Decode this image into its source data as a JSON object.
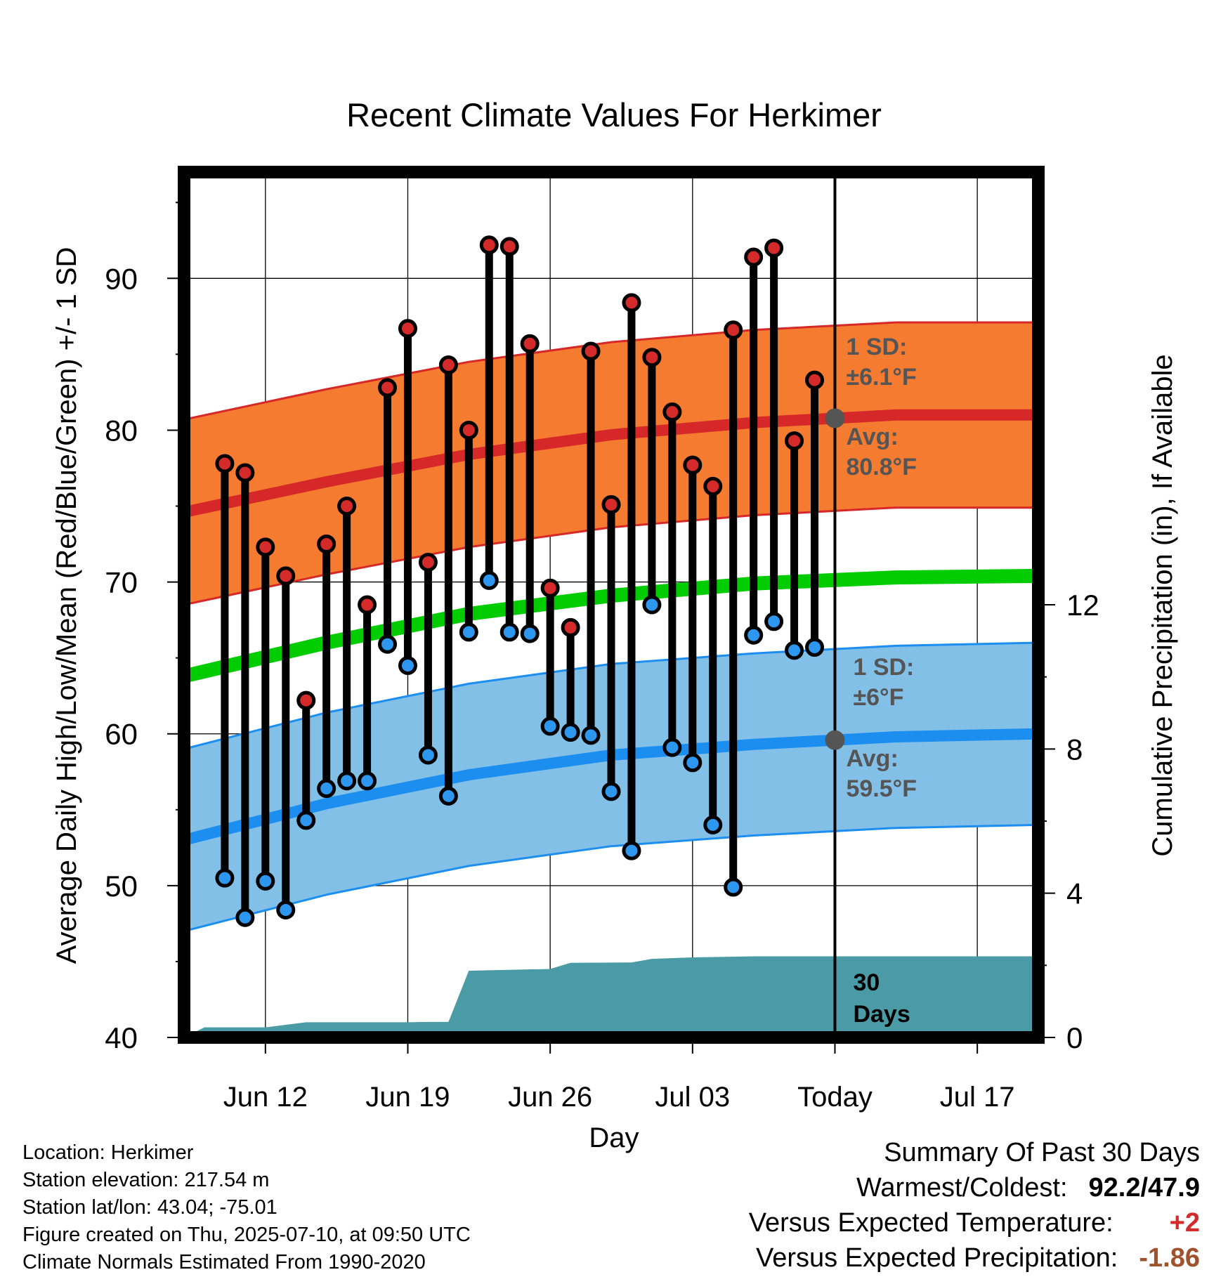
{
  "title": "Recent Climate Values For Herkimer",
  "chart_data": {
    "type": "line",
    "title": "Recent Climate Values For Herkimer",
    "xlabel": "Day",
    "ylabel": "Average Daily High/Low/Mean (Red/Blue/Green) +/- 1 SD",
    "ylabel_right": "Cumulative Precipitation (in), If Available",
    "ylim": [
      40,
      97
    ],
    "ylim_right": [
      0,
      24
    ],
    "xlim": [
      "2025-06-08",
      "2025-07-20"
    ],
    "y_ticks": [
      "40",
      "50",
      "60",
      "70",
      "80",
      "90"
    ],
    "y_ticks_right": [
      "0",
      "4",
      "8",
      "12"
    ],
    "x_ticks": [
      {
        "date": "2025-06-12",
        "label": "Jun 12"
      },
      {
        "date": "2025-06-19",
        "label": "Jun 19"
      },
      {
        "date": "2025-06-26",
        "label": "Jun 26"
      },
      {
        "date": "2025-07-03",
        "label": "Jul 03"
      },
      {
        "date": "2025-07-10",
        "label": "Today"
      },
      {
        "date": "2025-07-17",
        "label": "Jul 17"
      }
    ],
    "grid": true,
    "today": "2025-07-10",
    "daily": {
      "dates": [
        "2025-06-10",
        "2025-06-11",
        "2025-06-12",
        "2025-06-13",
        "2025-06-14",
        "2025-06-15",
        "2025-06-16",
        "2025-06-17",
        "2025-06-18",
        "2025-06-19",
        "2025-06-20",
        "2025-06-21",
        "2025-06-22",
        "2025-06-23",
        "2025-06-24",
        "2025-06-25",
        "2025-06-26",
        "2025-06-27",
        "2025-06-28",
        "2025-06-29",
        "2025-06-30",
        "2025-07-01",
        "2025-07-02",
        "2025-07-03",
        "2025-07-04",
        "2025-07-05",
        "2025-07-06",
        "2025-07-07",
        "2025-07-08",
        "2025-07-09"
      ],
      "highs": [
        77.8,
        77.2,
        72.3,
        70.4,
        62.2,
        72.5,
        75.0,
        68.5,
        82.8,
        86.7,
        71.3,
        84.3,
        80.0,
        92.2,
        92.1,
        85.7,
        69.6,
        67.0,
        85.2,
        75.1,
        88.4,
        84.8,
        81.2,
        77.7,
        76.3,
        86.6,
        91.4,
        92.0,
        79.3,
        83.3
      ],
      "lows": [
        50.5,
        47.9,
        50.3,
        48.4,
        54.3,
        56.4,
        56.9,
        56.9,
        65.9,
        64.5,
        58.6,
        55.9,
        66.7,
        70.1,
        66.7,
        66.6,
        60.5,
        60.1,
        59.9,
        56.2,
        52.3,
        68.5,
        59.1,
        58.1,
        54.0,
        49.9,
        66.5,
        67.4,
        65.5,
        65.7
      ]
    },
    "normals": {
      "dates": [
        "2025-06-08",
        "2025-06-15",
        "2025-06-22",
        "2025-06-29",
        "2025-07-06",
        "2025-07-13",
        "2025-07-20"
      ],
      "high_avg": [
        74.6,
        76.6,
        78.4,
        79.7,
        80.5,
        81.0,
        81.0
      ],
      "high_sd": 6.1,
      "mean_avg": [
        63.8,
        66.0,
        67.9,
        69.1,
        69.9,
        70.3,
        70.4
      ],
      "low_avg": [
        53.0,
        55.4,
        57.3,
        58.6,
        59.3,
        59.8,
        60.0
      ],
      "low_sd": 6.0
    },
    "precip": {
      "dates": [
        "2025-06-08",
        "2025-06-09",
        "2025-06-12",
        "2025-06-13",
        "2025-06-14",
        "2025-06-19",
        "2025-06-20",
        "2025-06-21",
        "2025-06-22",
        "2025-06-26",
        "2025-06-27",
        "2025-06-30",
        "2025-07-01",
        "2025-07-03",
        "2025-07-06",
        "2025-07-20"
      ],
      "values": [
        0.0,
        0.28,
        0.28,
        0.35,
        0.42,
        0.42,
        0.43,
        0.43,
        1.85,
        1.9,
        2.07,
        2.08,
        2.18,
        2.22,
        2.25,
        2.25
      ]
    },
    "annotations": {
      "high_sd_label": "1 SD:",
      "high_sd_value": "±6.1°F",
      "high_avg_label": "Avg:",
      "high_avg_value": "80.8°F",
      "low_sd_label": "1 SD:",
      "low_sd_value": "±6°F",
      "low_avg_label": "Avg:",
      "low_avg_value": "59.5°F",
      "precip_label_1": "30",
      "precip_label_2": "Days"
    },
    "colors": {
      "high_band": "#f47b30",
      "high_line": "#d62828",
      "low_band": "#82c0e8",
      "low_line": "#1c8ef0",
      "mean_line": "#00cc00",
      "precip": "#4a9ba5",
      "high_dot": "#d42a2a",
      "low_dot": "#2d96ee",
      "today_dot": "#555555",
      "annotation_text": "#555555"
    }
  },
  "info": {
    "location": "Location: Herkimer",
    "elevation": "Station elevation: 217.54 m",
    "latlon": "Station lat/lon: 43.04; -75.01",
    "created": "Figure created on Thu, 2025-07-10, at 09:50 UTC",
    "normals": "Climate Normals Estimated From 1990-2020"
  },
  "summary": {
    "title": "Summary Of Past 30 Days",
    "warm_cold_label": "Warmest/Coldest:",
    "warm_cold_value": "92.2/47.9",
    "temp_label": "Versus Expected Temperature:",
    "temp_value": "+2",
    "temp_color": "#d42a2a",
    "precip_label": "Versus Expected Precipitation:",
    "precip_value": "-1.86",
    "precip_color": "#a0522d"
  }
}
